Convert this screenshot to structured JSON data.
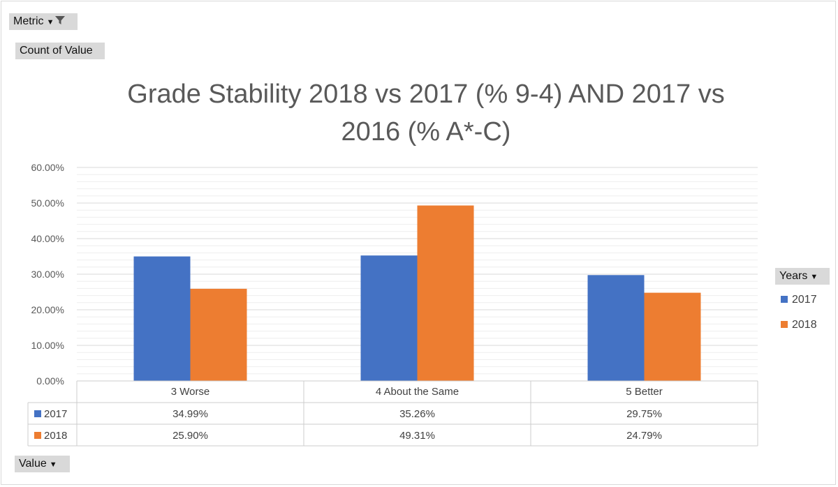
{
  "field_buttons": {
    "metric_label": "Metric",
    "count_label": "Count of Value",
    "value_label": "Value",
    "years_label": "Years"
  },
  "colors": {
    "s2017": "#4472c4",
    "s2018": "#ed7d31",
    "grid": "#d9d9d9",
    "text": "#595959"
  },
  "icons": {
    "metric": [
      "chevron-down-icon",
      "filter-icon"
    ],
    "value": "chevron-down-icon",
    "years": "chevron-down-icon"
  },
  "chart_data": {
    "type": "bar",
    "title": "Grade Stability 2018 vs 2017 (% 9-4) AND 2017 vs 2016 (% A*-C)",
    "categories": [
      "3 Worse",
      "4 About the Same",
      "5 Better"
    ],
    "series": [
      {
        "name": "2017",
        "values": [
          34.99,
          35.26,
          29.75
        ],
        "labels": [
          "34.99%",
          "35.26%",
          "29.75%"
        ]
      },
      {
        "name": "2018",
        "values": [
          25.9,
          49.31,
          24.79
        ],
        "labels": [
          "25.90%",
          "49.31%",
          "24.79%"
        ]
      }
    ],
    "ylim": [
      0,
      60
    ],
    "yticks": [
      "0.00%",
      "10.00%",
      "20.00%",
      "30.00%",
      "40.00%",
      "50.00%",
      "60.00%"
    ],
    "legend_title": "Years",
    "legend": "right",
    "grid": true,
    "data_table": true
  }
}
